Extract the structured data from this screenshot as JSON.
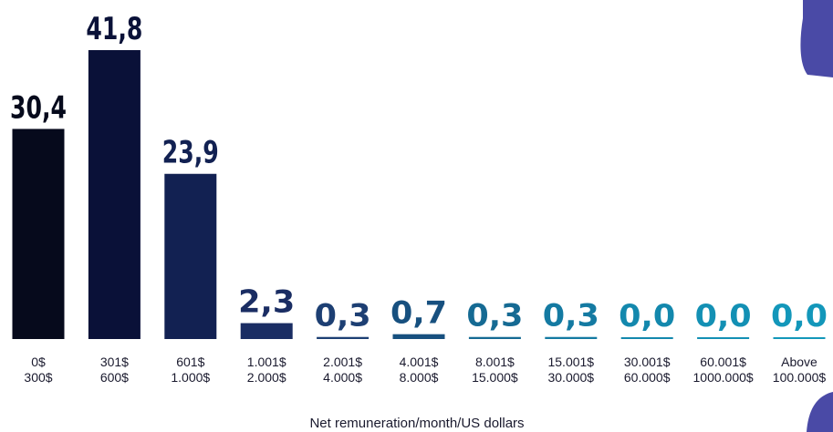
{
  "chart_data": {
    "type": "bar",
    "x_label": "Net remuneration/month/US dollars",
    "categories": [
      [
        "0$",
        "300$"
      ],
      [
        "301$",
        "600$"
      ],
      [
        "601$",
        "1.000$"
      ],
      [
        "1.001$",
        "2.000$"
      ],
      [
        "2.001$",
        "4.000$"
      ],
      [
        "4.001$",
        "8.000$"
      ],
      [
        "8.001$",
        "15.000$"
      ],
      [
        "15.001$",
        "30.000$"
      ],
      [
        "30.001$",
        "60.000$"
      ],
      [
        "60.001$",
        "1000.000$"
      ],
      [
        "Above",
        "100.000$"
      ]
    ],
    "values": [
      30.4,
      41.8,
      23.9,
      2.3,
      0.3,
      0.7,
      0.3,
      0.3,
      0.0,
      0.0,
      0.0
    ],
    "value_labels": [
      "30,4",
      "41,8",
      "23,9",
      "2,3",
      "0,3",
      "0,7",
      "0,3",
      "0,3",
      "0,0",
      "0,0",
      "0,0"
    ],
    "colors": [
      "#060a1c",
      "#0a1138",
      "#122152",
      "#1a2d63",
      "#1d3f73",
      "#17507f",
      "#156a93",
      "#147aa2",
      "#1388ad",
      "#1390b4",
      "#1397ba"
    ]
  }
}
